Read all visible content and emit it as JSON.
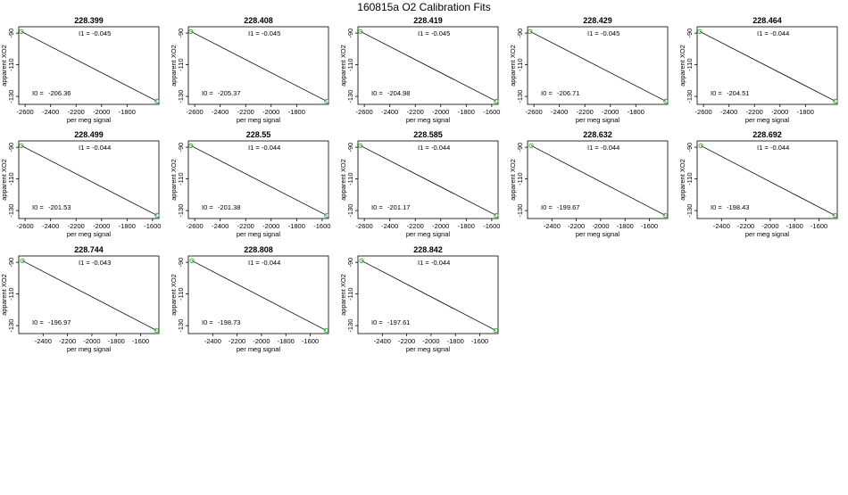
{
  "page_title": "160815a   O2 Calibration Fits",
  "colors": {
    "axis": "#000000",
    "line": "#000000",
    "point": "#22bb22",
    "background": "#ffffff"
  },
  "chart_data": [
    {
      "type": "scatter",
      "title": "228.399",
      "xlabel": "per meg signal",
      "ylabel": "apparent XO2",
      "xlim": [
        -2650,
        -1550
      ],
      "ylim": [
        -135,
        -86
      ],
      "xticks": [
        -2600,
        -2400,
        -2200,
        -2000,
        -1800
      ],
      "xtick_labels": [
        "-2600",
        "-2400",
        "-2200",
        "-2000",
        "-1800"
      ],
      "yticks": [
        -90,
        -110,
        -130
      ],
      "ytick_labels": [
        "-90",
        "-110",
        "-130"
      ],
      "points": [
        [
          -2630,
          -89
        ],
        [
          -1565,
          -133
        ]
      ],
      "fit_line": [
        [
          -2630,
          -89
        ],
        [
          -1565,
          -133
        ]
      ],
      "annotations": {
        "i1_label": "I1 =",
        "i1_value": "-0.045",
        "i0_label": "I0 =",
        "i0_value": "-206.36"
      }
    },
    {
      "type": "scatter",
      "title": "228.408",
      "xlabel": "per meg signal",
      "ylabel": "apparent XO2",
      "xlim": [
        -2650,
        -1550
      ],
      "ylim": [
        -135,
        -86
      ],
      "xticks": [
        -2600,
        -2400,
        -2200,
        -2000,
        -1800
      ],
      "xtick_labels": [
        "-2600",
        "-2400",
        "-2200",
        "-2000",
        "-1800"
      ],
      "yticks": [
        -90,
        -110,
        -130
      ],
      "ytick_labels": [
        "-90",
        "-110",
        "-130"
      ],
      "points": [
        [
          -2630,
          -89
        ],
        [
          -1565,
          -133
        ]
      ],
      "fit_line": [
        [
          -2630,
          -89
        ],
        [
          -1565,
          -133
        ]
      ],
      "annotations": {
        "i1_label": "I1 =",
        "i1_value": "-0.045",
        "i0_label": "I0 =",
        "i0_value": "-205.37"
      }
    },
    {
      "type": "scatter",
      "title": "228.419",
      "xlabel": "per meg signal",
      "ylabel": "apparent XO2",
      "xlim": [
        -2650,
        -1550
      ],
      "ylim": [
        -135,
        -86
      ],
      "xticks": [
        -2600,
        -2400,
        -2200,
        -2000,
        -1800,
        -1600
      ],
      "xtick_labels": [
        "-2600",
        "-2400",
        "-2200",
        "-2000",
        "-1800",
        "-1600"
      ],
      "yticks": [
        -90,
        -110,
        -130
      ],
      "ytick_labels": [
        "-90",
        "-110",
        "-130"
      ],
      "points": [
        [
          -2630,
          -89
        ],
        [
          -1565,
          -133
        ]
      ],
      "fit_line": [
        [
          -2630,
          -89
        ],
        [
          -1565,
          -133
        ]
      ],
      "annotations": {
        "i1_label": "I1 =",
        "i1_value": "-0.045",
        "i0_label": "I0 =",
        "i0_value": "-204.98"
      }
    },
    {
      "type": "scatter",
      "title": "228.429",
      "xlabel": "per meg signal",
      "ylabel": "apparent XO2",
      "xlim": [
        -2650,
        -1550
      ],
      "ylim": [
        -135,
        -86
      ],
      "xticks": [
        -2600,
        -2400,
        -2200,
        -2000,
        -1800
      ],
      "xtick_labels": [
        "-2600",
        "-2400",
        "-2200",
        "-2000",
        "-1800"
      ],
      "yticks": [
        -90,
        -110,
        -130
      ],
      "ytick_labels": [
        "-90",
        "-110",
        "-130"
      ],
      "points": [
        [
          -2630,
          -89
        ],
        [
          -1565,
          -133
        ]
      ],
      "fit_line": [
        [
          -2630,
          -89
        ],
        [
          -1565,
          -133
        ]
      ],
      "annotations": {
        "i1_label": "I1 =",
        "i1_value": "-0.045",
        "i0_label": "I0 =",
        "i0_value": "-206.71"
      }
    },
    {
      "type": "scatter",
      "title": "228.464",
      "xlabel": "per meg signal",
      "ylabel": "apparent XO2",
      "xlim": [
        -2650,
        -1550
      ],
      "ylim": [
        -135,
        -86
      ],
      "xticks": [
        -2600,
        -2400,
        -2200,
        -2000,
        -1800
      ],
      "xtick_labels": [
        "-2600",
        "-2400",
        "-2200",
        "-2000",
        "-1800"
      ],
      "yticks": [
        -90,
        -110,
        -130
      ],
      "ytick_labels": [
        "-90",
        "-110",
        "-130"
      ],
      "points": [
        [
          -2630,
          -89
        ],
        [
          -1565,
          -133
        ]
      ],
      "fit_line": [
        [
          -2630,
          -89
        ],
        [
          -1565,
          -133
        ]
      ],
      "annotations": {
        "i1_label": "I1 =",
        "i1_value": "-0.044",
        "i0_label": "I0 =",
        "i0_value": "-204.51"
      }
    },
    {
      "type": "scatter",
      "title": "228.499",
      "xlabel": "per meg signal",
      "ylabel": "apparent XO2",
      "xlim": [
        -2650,
        -1550
      ],
      "ylim": [
        -135,
        -86
      ],
      "xticks": [
        -2600,
        -2400,
        -2200,
        -2000,
        -1800,
        -1600
      ],
      "xtick_labels": [
        "-2600",
        "-2400",
        "-2200",
        "-2000",
        "-1800",
        "-1600"
      ],
      "yticks": [
        -90,
        -110,
        -130
      ],
      "ytick_labels": [
        "-90",
        "-110",
        "-130"
      ],
      "points": [
        [
          -2630,
          -89
        ],
        [
          -1565,
          -133
        ]
      ],
      "fit_line": [
        [
          -2630,
          -89
        ],
        [
          -1565,
          -133
        ]
      ],
      "annotations": {
        "i1_label": "I1 =",
        "i1_value": "-0.044",
        "i0_label": "I0 =",
        "i0_value": "-201.53"
      }
    },
    {
      "type": "scatter",
      "title": "228.55",
      "xlabel": "per meg signal",
      "ylabel": "apparent XO2",
      "xlim": [
        -2650,
        -1550
      ],
      "ylim": [
        -135,
        -86
      ],
      "xticks": [
        -2600,
        -2400,
        -2200,
        -2000,
        -1800,
        -1600
      ],
      "xtick_labels": [
        "-2600",
        "-2400",
        "-2200",
        "-2000",
        "-1800",
        "-1600"
      ],
      "yticks": [
        -90,
        -110,
        -130
      ],
      "ytick_labels": [
        "-90",
        "-110",
        "-130"
      ],
      "points": [
        [
          -2630,
          -89
        ],
        [
          -1565,
          -133
        ]
      ],
      "fit_line": [
        [
          -2630,
          -89
        ],
        [
          -1565,
          -133
        ]
      ],
      "annotations": {
        "i1_label": "I1 =",
        "i1_value": "-0.044",
        "i0_label": "I0 =",
        "i0_value": "-201.38"
      }
    },
    {
      "type": "scatter",
      "title": "228.585",
      "xlabel": "per meg signal",
      "ylabel": "apparent XO2",
      "xlim": [
        -2650,
        -1550
      ],
      "ylim": [
        -135,
        -86
      ],
      "xticks": [
        -2600,
        -2400,
        -2200,
        -2000,
        -1800,
        -1600
      ],
      "xtick_labels": [
        "-2600",
        "-2400",
        "-2200",
        "-2000",
        "-1800",
        "-1600"
      ],
      "yticks": [
        -90,
        -110,
        -130
      ],
      "ytick_labels": [
        "-90",
        "-110",
        "-130"
      ],
      "points": [
        [
          -2630,
          -89
        ],
        [
          -1565,
          -133
        ]
      ],
      "fit_line": [
        [
          -2630,
          -89
        ],
        [
          -1565,
          -133
        ]
      ],
      "annotations": {
        "i1_label": "I1 =",
        "i1_value": "-0.044",
        "i0_label": "I0 =",
        "i0_value": "-201.17"
      }
    },
    {
      "type": "scatter",
      "title": "228.632",
      "xlabel": "per meg signal",
      "ylabel": "apparent XO2",
      "xlim": [
        -2600,
        -1450
      ],
      "ylim": [
        -135,
        -86
      ],
      "xticks": [
        -2400,
        -2200,
        -2000,
        -1800,
        -1600
      ],
      "xtick_labels": [
        "-2400",
        "-2200",
        "-2000",
        "-1800",
        "-1600"
      ],
      "yticks": [
        -90,
        -110,
        -130
      ],
      "ytick_labels": [
        "-90",
        "-110",
        "-130"
      ],
      "points": [
        [
          -2570,
          -89
        ],
        [
          -1470,
          -133
        ]
      ],
      "fit_line": [
        [
          -2570,
          -89
        ],
        [
          -1470,
          -133
        ]
      ],
      "annotations": {
        "i1_label": "I1 =",
        "i1_value": "-0.044",
        "i0_label": "I0 =",
        "i0_value": "-199.67"
      }
    },
    {
      "type": "scatter",
      "title": "228.692",
      "xlabel": "per meg signal",
      "ylabel": "apparent XO2",
      "xlim": [
        -2600,
        -1450
      ],
      "ylim": [
        -135,
        -86
      ],
      "xticks": [
        -2400,
        -2200,
        -2000,
        -1800,
        -1600
      ],
      "xtick_labels": [
        "-2400",
        "-2200",
        "-2000",
        "-1800",
        "-1600"
      ],
      "yticks": [
        -90,
        -110,
        -130
      ],
      "ytick_labels": [
        "-90",
        "-110",
        "-130"
      ],
      "points": [
        [
          -2570,
          -89
        ],
        [
          -1470,
          -133
        ]
      ],
      "fit_line": [
        [
          -2570,
          -89
        ],
        [
          -1470,
          -133
        ]
      ],
      "annotations": {
        "i1_label": "I1 =",
        "i1_value": "-0.044",
        "i0_label": "I0 =",
        "i0_value": "-198.43"
      }
    },
    {
      "type": "scatter",
      "title": "228.744",
      "xlabel": "per meg signal",
      "ylabel": "apparent XO2",
      "xlim": [
        -2600,
        -1450
      ],
      "ylim": [
        -135,
        -86
      ],
      "xticks": [
        -2400,
        -2200,
        -2000,
        -1800,
        -1600
      ],
      "xtick_labels": [
        "-2400",
        "-2200",
        "-2000",
        "-1800",
        "-1600"
      ],
      "yticks": [
        -90,
        -110,
        -130
      ],
      "ytick_labels": [
        "-90",
        "-110",
        "-130"
      ],
      "points": [
        [
          -2570,
          -89
        ],
        [
          -1470,
          -133
        ]
      ],
      "fit_line": [
        [
          -2570,
          -89
        ],
        [
          -1470,
          -133
        ]
      ],
      "annotations": {
        "i1_label": "I1 =",
        "i1_value": "-0.043",
        "i0_label": "I0 =",
        "i0_value": "-196.97"
      }
    },
    {
      "type": "scatter",
      "title": "228.808",
      "xlabel": "per meg signal",
      "ylabel": "apparent XO2",
      "xlim": [
        -2600,
        -1450
      ],
      "ylim": [
        -135,
        -86
      ],
      "xticks": [
        -2400,
        -2200,
        -2000,
        -1800,
        -1600
      ],
      "xtick_labels": [
        "-2400",
        "-2200",
        "-2000",
        "-1800",
        "-1600"
      ],
      "yticks": [
        -90,
        -110,
        -130
      ],
      "ytick_labels": [
        "-90",
        "-110",
        "-130"
      ],
      "points": [
        [
          -2570,
          -89
        ],
        [
          -1470,
          -133
        ]
      ],
      "fit_line": [
        [
          -2570,
          -89
        ],
        [
          -1470,
          -133
        ]
      ],
      "annotations": {
        "i1_label": "I1 =",
        "i1_value": "-0.044",
        "i0_label": "I0 =",
        "i0_value": "-198.73"
      }
    },
    {
      "type": "scatter",
      "title": "228.842",
      "xlabel": "per meg signal",
      "ylabel": "apparent XO2",
      "xlim": [
        -2600,
        -1450
      ],
      "ylim": [
        -135,
        -86
      ],
      "xticks": [
        -2400,
        -2200,
        -2000,
        -1800,
        -1600
      ],
      "xtick_labels": [
        "-2400",
        "-2200",
        "-2000",
        "-1800",
        "-1600"
      ],
      "yticks": [
        -90,
        -110,
        -130
      ],
      "ytick_labels": [
        "-90",
        "-110",
        "-130"
      ],
      "points": [
        [
          -2570,
          -89
        ],
        [
          -1470,
          -133
        ]
      ],
      "fit_line": [
        [
          -2570,
          -89
        ],
        [
          -1470,
          -133
        ]
      ],
      "annotations": {
        "i1_label": "I1 =",
        "i1_value": "-0.044",
        "i0_label": "I0 =",
        "i0_value": "-197.61"
      }
    }
  ]
}
